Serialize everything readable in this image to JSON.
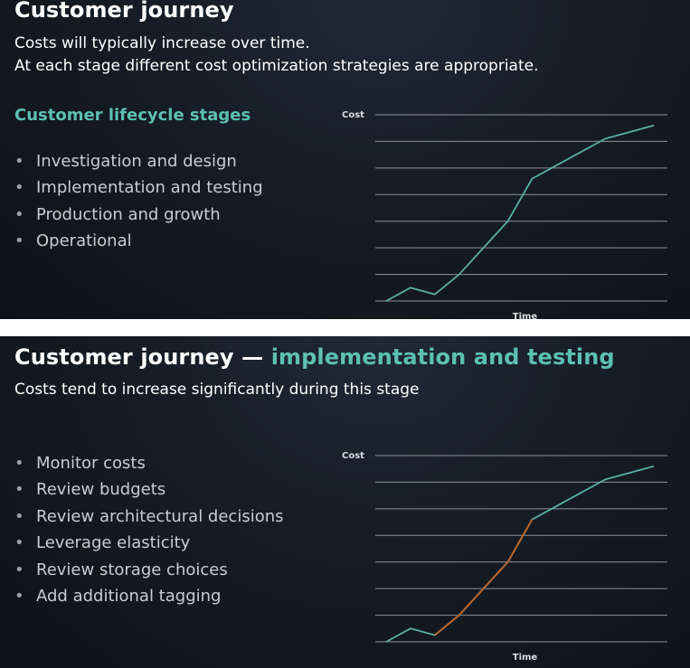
{
  "slide1": {
    "title": "Customer journey",
    "subtitle_lines": [
      "Costs will typically increase over time.",
      "At each stage different cost optimization strategies are appropriate."
    ],
    "section_heading": "Customer lifecycle stages",
    "bullets": [
      "Investigation and design",
      "Implementation and testing",
      "Production and growth",
      "Operational"
    ]
  },
  "slide2": {
    "title_prefix": "Customer journey — ",
    "title_highlight": "implementation and testing",
    "subtitle": "Costs tend to increase significantly during this stage",
    "bullets": [
      "Monitor costs",
      "Review budgets",
      "Review architectural decisions",
      "Leverage elasticity",
      "Review storage choices",
      "Add additional tagging"
    ]
  },
  "colors": {
    "accent": "#5dbfb3",
    "line": "#5aaea4",
    "highlight_segment": "#b8642a",
    "gridline": "#8c9298"
  },
  "chart_data": [
    {
      "type": "line",
      "ylabel": "Cost",
      "xlabel": "Time",
      "x": [
        0,
        1,
        2,
        3,
        4,
        5,
        6,
        7,
        8,
        9,
        10,
        11
      ],
      "series": [
        {
          "values": [
            0,
            0.5,
            0.25,
            1,
            2,
            3,
            4.6,
            5.1,
            5.6,
            6.1,
            6.35,
            6.6
          ]
        }
      ],
      "ylim": [
        0,
        7
      ],
      "grid": true
    },
    {
      "type": "line",
      "ylabel": "Cost",
      "xlabel": "Time",
      "x": [
        0,
        1,
        2,
        3,
        4,
        5,
        6,
        7,
        8,
        9,
        10,
        11
      ],
      "series": [
        {
          "values": [
            0,
            0.5,
            0.25,
            1,
            2,
            3,
            4.6,
            5.1,
            5.6,
            6.1,
            6.35,
            6.6
          ]
        }
      ],
      "highlight_range": [
        2,
        6
      ],
      "ylim": [
        0,
        7
      ],
      "grid": true
    }
  ]
}
